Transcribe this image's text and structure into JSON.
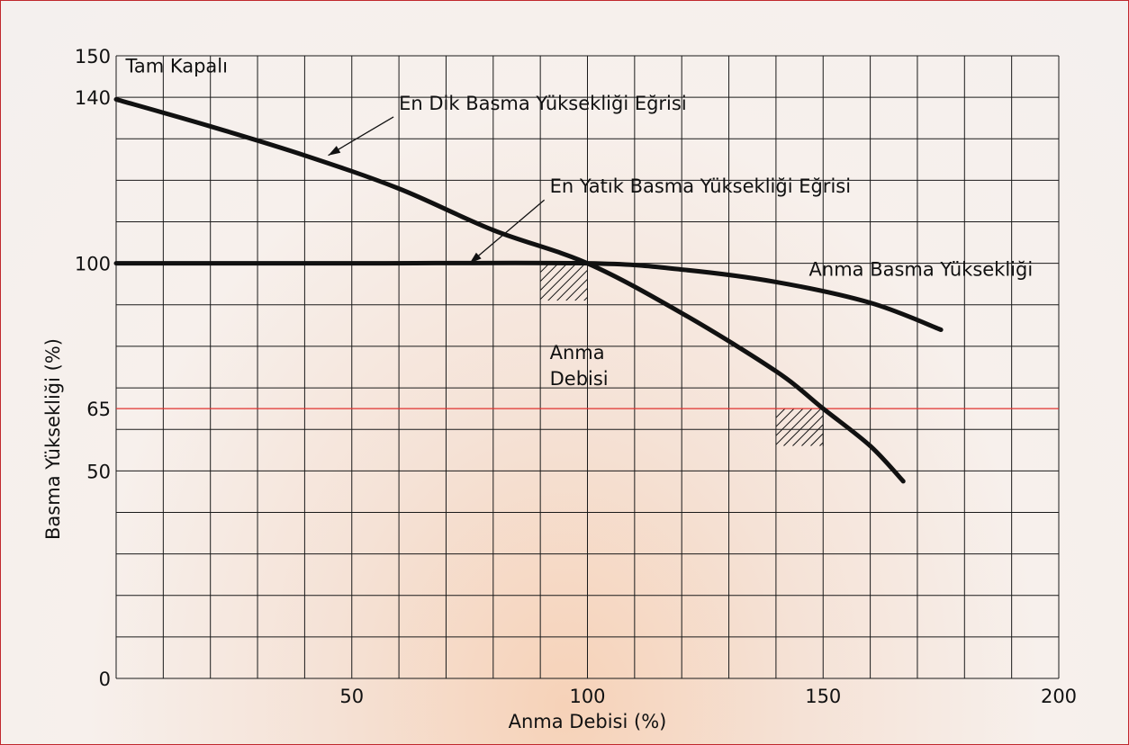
{
  "chart_data": {
    "type": "line",
    "xlabel": "Anma Debisi (%)",
    "ylabel": "Basma Yüksekliği (%)",
    "xlim": [
      0,
      200
    ],
    "ylim": [
      0,
      150
    ],
    "x_ticks": [
      50,
      100,
      150,
      200
    ],
    "y_ticks": [
      0,
      50,
      65,
      100,
      140,
      150
    ],
    "grid": true,
    "reference_line": {
      "y": 65,
      "color": "#e0322f"
    },
    "series": [
      {
        "name": "En Dik Basma Yüksekliği Eğrisi",
        "x": [
          0,
          20,
          40,
          60,
          80,
          100,
          120,
          140,
          150,
          160,
          167
        ],
        "y": [
          139.5,
          133,
          126,
          118,
          108,
          100,
          88,
          74,
          65,
          56,
          47.5
        ]
      },
      {
        "name": "En Yatık Basma Yüksekliği Eğrisi",
        "x": [
          0,
          50,
          100,
          120,
          140,
          160,
          175
        ],
        "y": [
          100,
          100,
          100,
          98.5,
          95.5,
          90.5,
          84
        ]
      }
    ],
    "annotations": [
      {
        "text": "Tam Kapalı",
        "x": 2,
        "y": 146
      },
      {
        "text": "En Dik Basma Yüksekliği Eğrisi",
        "x": 60,
        "y": 137,
        "arrow_to": [
          45,
          126
        ]
      },
      {
        "text": "En Yatık Basma Yüksekliği Eğrisi",
        "x": 92,
        "y": 117,
        "arrow_to": [
          75,
          100
        ]
      },
      {
        "text": "Anma Basma Yüksekliği",
        "x": 147,
        "y": 97
      },
      {
        "lines": [
          "Anma",
          "Debisi"
        ],
        "x": 92,
        "y": 77
      }
    ],
    "hatched_regions": [
      {
        "x": [
          90,
          100
        ],
        "y": [
          91,
          100
        ]
      },
      {
        "x": [
          140,
          150
        ],
        "y": [
          56,
          65
        ]
      }
    ]
  }
}
